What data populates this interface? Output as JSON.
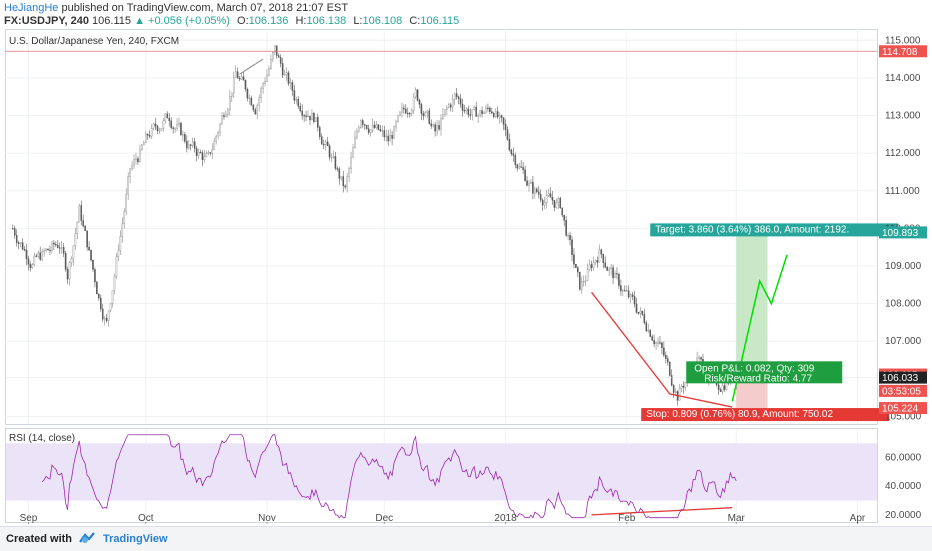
{
  "header": {
    "author": "HeJiangHe",
    "published": "published on TradingView.com, March 07, 2018 21:07 EST",
    "symbol": "FX:USDJPY, 240",
    "last": "106.115",
    "change": "+0.056 (+0.05%)",
    "open_label": "O:",
    "open": "106.136",
    "high_label": "H:",
    "high": "106.138",
    "low_label": "L:",
    "low": "106.108",
    "close_label": "C:",
    "close": "106.115"
  },
  "footer": {
    "created": "Created with",
    "brand": "TradingView"
  },
  "colors": {
    "up": "#26a69a",
    "down": "#ef5350",
    "candle": "#6d6d6d",
    "rsi_line": "#9c27b0",
    "rsi_band": "#ebe3f7",
    "target_zone": "#c8e8c8",
    "stop_zone": "#f5cccc",
    "projection": "#00e000",
    "divergence": "#e53935",
    "hline": "#e57373"
  },
  "chart_data": [
    {
      "type": "candlestick",
      "title": "U.S. Dollar/Japanese Yen, 240, FXCM",
      "ylim": [
        104.8,
        115.3
      ],
      "yticks": [
        "115.000",
        "114.000",
        "113.000",
        "112.000",
        "111.000",
        "110.000",
        "109.000",
        "108.000",
        "107.000",
        "105.000"
      ],
      "xticks": [
        "Sep",
        "Oct",
        "Nov",
        "Dec",
        "2018",
        "Feb",
        "Mar",
        "Apr"
      ],
      "xtick_days": [
        4,
        34,
        65,
        95,
        126,
        157,
        185,
        216
      ],
      "anchors": [
        [
          0,
          110.0
        ],
        [
          5,
          109.1
        ],
        [
          12,
          109.6
        ],
        [
          14,
          108.8
        ],
        [
          17,
          110.5
        ],
        [
          22,
          108.2
        ],
        [
          24,
          107.5
        ],
        [
          30,
          111.5
        ],
        [
          35,
          112.5
        ],
        [
          40,
          113.0
        ],
        [
          45,
          112.2
        ],
        [
          50,
          111.8
        ],
        [
          57,
          114.1
        ],
        [
          62,
          113.3
        ],
        [
          67,
          114.7
        ],
        [
          72,
          113.5
        ],
        [
          77,
          113.0
        ],
        [
          80,
          112.2
        ],
        [
          85,
          111.0
        ],
        [
          89,
          113.0
        ],
        [
          96,
          112.3
        ],
        [
          103,
          113.6
        ],
        [
          108,
          112.5
        ],
        [
          113,
          113.5
        ],
        [
          118,
          113.0
        ],
        [
          123,
          113.2
        ],
        [
          127,
          112.2
        ],
        [
          133,
          111.0
        ],
        [
          140,
          110.6
        ],
        [
          145,
          108.4
        ],
        [
          150,
          109.4
        ],
        [
          155,
          108.5
        ],
        [
          160,
          107.8
        ],
        [
          165,
          107.0
        ],
        [
          170,
          105.6
        ],
        [
          175,
          106.5
        ],
        [
          180,
          105.8
        ],
        [
          185,
          106.1
        ]
      ],
      "last_day": 185,
      "price_labels": [
        {
          "value": 114.708,
          "text": "114.708",
          "color": "#ef5350"
        },
        {
          "value": 109.893,
          "text": "109.893",
          "color": "#26a69a"
        },
        {
          "value": 106.115,
          "text": "106.115",
          "color": "#ef5350"
        },
        {
          "value": 105.68,
          "text": "03:53:05",
          "color": "#ef5350"
        },
        {
          "value": 105.224,
          "text": "105.224",
          "color": "#ef5350"
        },
        {
          "value": 106.033,
          "text": "106.033",
          "color": "#222222"
        }
      ],
      "position": {
        "entry": 106.033,
        "target": 109.893,
        "stop": 105.224,
        "start_day": 185,
        "end_day": 193,
        "target_text": "Target: 3.860 (3.64%) 386.0, Amount: 2192.",
        "stop_text": "Stop: 0.809 (0.76%) 80.9, Amount: 750.02",
        "pnl_text": "Open P&L: 0.082, Qty: 309",
        "rr_text": "Risk/Reward Ratio: 4.77"
      },
      "projection": [
        [
          184,
          105.4
        ],
        [
          191,
          108.6
        ],
        [
          194,
          108.0
        ],
        [
          198,
          109.3
        ]
      ],
      "divergence_line": [
        [
          148,
          108.3
        ],
        [
          168,
          105.6
        ],
        [
          184,
          105.25
        ]
      ],
      "trendline": [
        [
          58,
          114.1
        ],
        [
          64,
          114.5
        ]
      ]
    },
    {
      "type": "line",
      "title": "RSI (14, close)",
      "ylim": [
        15,
        80
      ],
      "yticks": [
        "60.0000",
        "40.0000",
        "20.0000"
      ],
      "band": [
        30,
        70
      ],
      "divergence_line": [
        [
          148,
          20.0
        ],
        [
          184,
          25.0
        ]
      ]
    }
  ]
}
